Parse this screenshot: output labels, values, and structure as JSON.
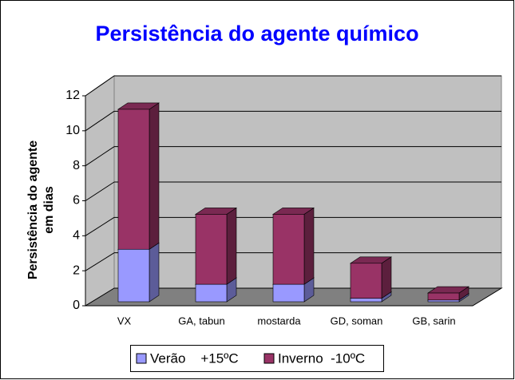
{
  "chart_data": {
    "type": "bar3d_stacked",
    "title": "Persistência do agente químico",
    "y_label": "Persistência do agente em dias",
    "categories": [
      "VX",
      "GA, tabun",
      "mostarda",
      "GD, soman",
      "GB, sarin"
    ],
    "series": [
      {
        "name": "Verão    +15ºC",
        "color": "#9999ff",
        "values": [
          3,
          1,
          1,
          0.2,
          0.1
        ]
      },
      {
        "name": "Inverno  -10ºC",
        "color": "#993366",
        "values": [
          8,
          4,
          4,
          2,
          0.4
        ]
      }
    ],
    "ylim": [
      0,
      12
    ],
    "yticks": [
      0,
      2,
      4,
      6,
      8,
      10,
      12
    ],
    "grid": true,
    "legend": "bottom"
  }
}
